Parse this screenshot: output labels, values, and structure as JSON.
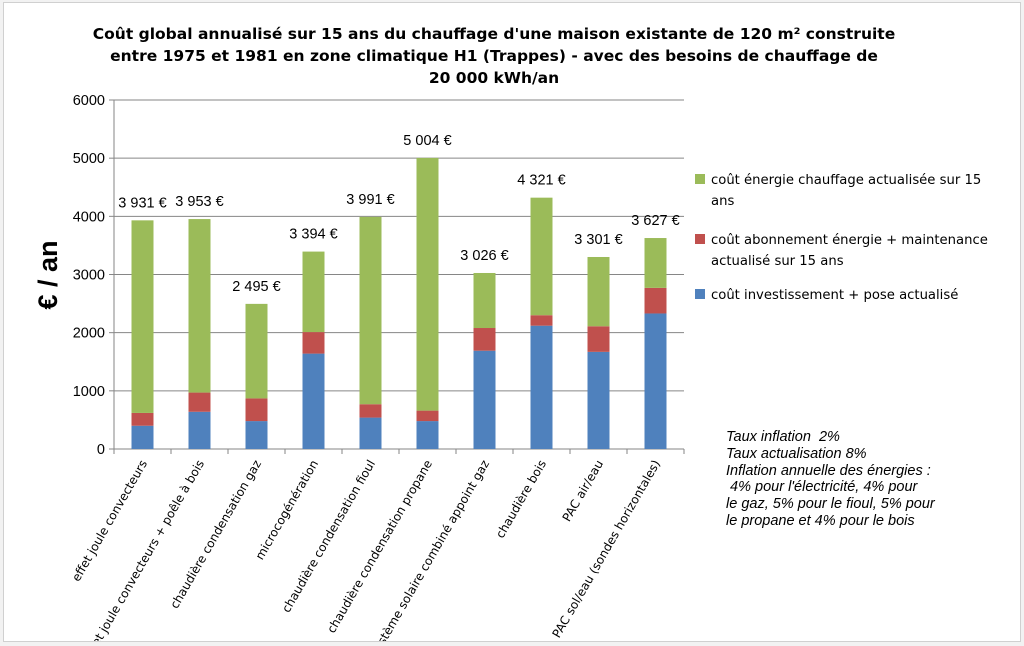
{
  "chart_data": {
    "type": "bar",
    "stacked": true,
    "title": [
      "Coût global annualisé sur 15 ans du chauffage d'une maison existante de 120 m² construite",
      "entre 1975 et 1981 en  zone climatique H1 (Trappes) - avec des besoins de chauffage de",
      "20 000 kWh/an"
    ],
    "ylabel": "€ / an",
    "ylim": [
      0,
      6000
    ],
    "yticks": [
      "0",
      "1000",
      "2000",
      "3000",
      "4000",
      "5000",
      "6000"
    ],
    "grid": true,
    "legend_position": "right",
    "categories": [
      "effet joule convecteurs",
      "effet joule convecteurs + poêle à bois",
      "chaudière condensation gaz",
      "microcogénération",
      "chaudière condensation fioul",
      "chaudière condensation propane",
      "Système solaire combiné appoint gaz",
      "chaudière bois",
      "PAC air/eau",
      "PAC sol/eau (sondes horizontales)"
    ],
    "series": [
      {
        "name": "coût investissement + pose actualisé",
        "color": "#4f81bd",
        "values": [
          400,
          640,
          480,
          1640,
          540,
          480,
          1690,
          2120,
          1670,
          2330
        ]
      },
      {
        "name": "coût abonnement énergie + maintenance actualisé sur 15 ans",
        "color": "#c0504d",
        "values": [
          220,
          330,
          390,
          370,
          230,
          180,
          390,
          180,
          440,
          440
        ]
      },
      {
        "name": "coût énergie chauffage actualisée sur 15 ans",
        "color": "#9bbb59",
        "values": [
          3311,
          2983,
          1625,
          1384,
          3221,
          4344,
          946,
          2021,
          1191,
          857
        ]
      }
    ],
    "totals": [
      3931,
      3953,
      2495,
      3394,
      3991,
      5004,
      3026,
      4321,
      3301,
      3627
    ],
    "total_labels": [
      "3 931 €",
      "3 953 €",
      "2 495 €",
      "3 394 €",
      "3 991 €",
      "5 004 €",
      "3 026 €",
      "4 321 €",
      "3 301 €",
      "3 627 €"
    ],
    "legend": [
      {
        "label_lines": [
          "coût énergie chauffage actualisée sur 15",
          "ans"
        ],
        "color": "#9bbb59"
      },
      {
        "label_lines": [
          "coût abonnement énergie + maintenance",
          "actualisé sur 15 ans"
        ],
        "color": "#c0504d"
      },
      {
        "label_lines": [
          "coût investissement + pose actualisé"
        ],
        "color": "#4f81bd"
      }
    ]
  },
  "notes": [
    "Taux inflation  2%",
    "Taux actualisation 8%",
    "Inflation annuelle des énergies :",
    " 4% pour l'électricité, 4% pour",
    "le gaz, 5% pour le fioul, 5% pour",
    "le propane et 4% pour le bois"
  ]
}
